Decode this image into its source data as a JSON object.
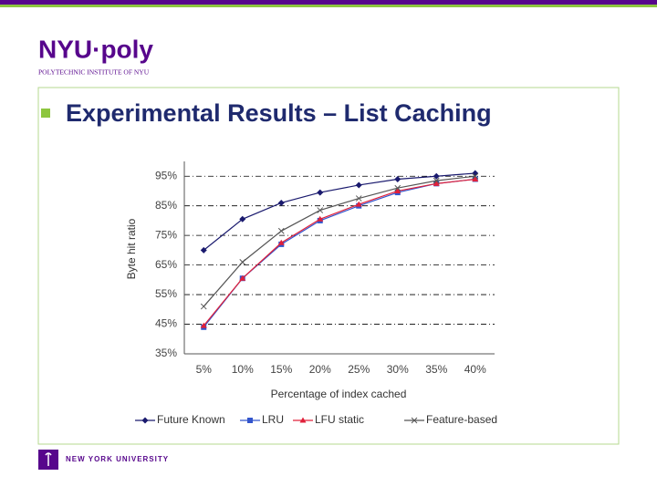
{
  "slide": {
    "logo": "NYU·poly",
    "logo_subtitle": "POLYTECHNIC INSTITUTE OF NYU",
    "footer": "NEW YORK UNIVERSITY"
  },
  "chart_data": {
    "type": "line",
    "title": "Experimental Results – List Caching",
    "y_label": "Byte hit ratio",
    "x_label": "Percentage of index cached",
    "categories": [
      "5%",
      "10%",
      "15%",
      "20%",
      "25%",
      "30%",
      "35%",
      "40%"
    ],
    "series": [
      {
        "name": "Future Known",
        "color": "#1a1a6e",
        "marker": "diamond",
        "values": [
          70,
          80.5,
          86,
          89.5,
          92,
          94,
          95,
          96
        ]
      },
      {
        "name": "LRU",
        "color": "#3355cc",
        "marker": "square",
        "values": [
          44,
          60.5,
          72,
          80,
          85,
          89.5,
          92.5,
          94
        ]
      },
      {
        "name": "LFU static",
        "color": "#e0203a",
        "marker": "triangle",
        "values": [
          44.5,
          60.5,
          72.5,
          80.5,
          85.5,
          90,
          92.5,
          94
        ]
      },
      {
        "name": "Feature-based",
        "color": "#555555",
        "marker": "x",
        "values": [
          51,
          66,
          76.5,
          83.5,
          87.5,
          91,
          93.5,
          95
        ]
      }
    ],
    "ylim": [
      35,
      100
    ],
    "yticks": [
      {
        "value": 35,
        "label": "35%"
      },
      {
        "value": 45,
        "label": "45%"
      },
      {
        "value": 55,
        "label": "55%"
      },
      {
        "value": 65,
        "label": "65%"
      },
      {
        "value": 75,
        "label": "75%"
      },
      {
        "value": 85,
        "label": "85%"
      },
      {
        "value": 95,
        "label": "95%"
      }
    ],
    "grid": true,
    "legend": "bottom"
  }
}
